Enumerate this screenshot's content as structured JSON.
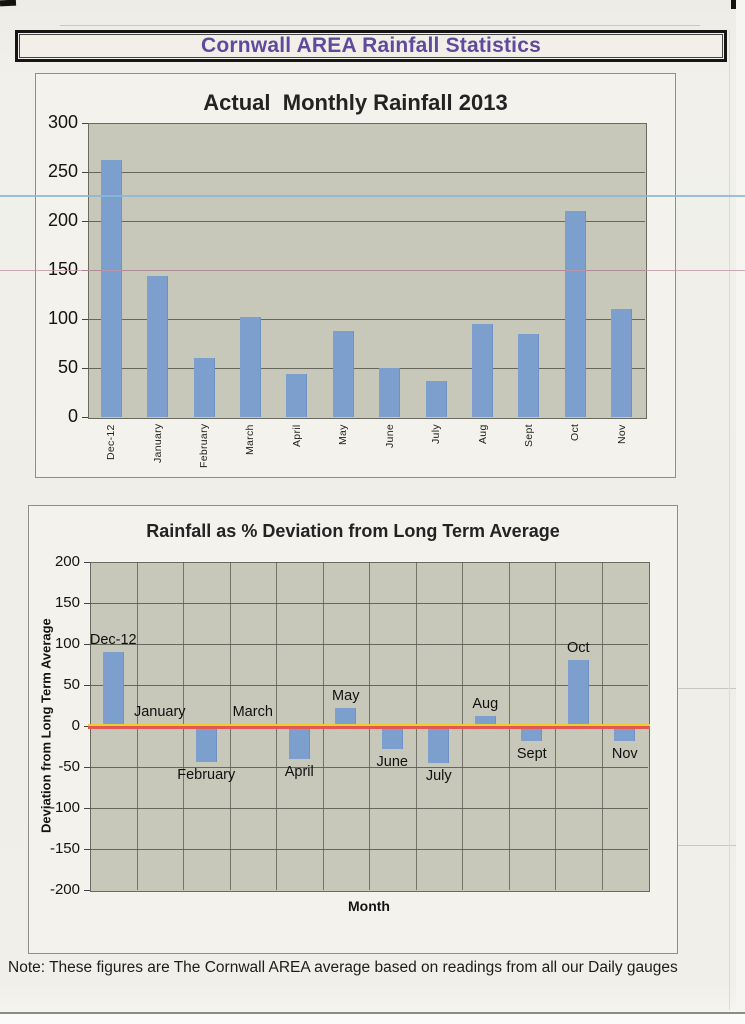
{
  "page_title": "Cornwall AREA Rainfall Statistics",
  "note": "Note: These figures are The Cornwall AREA average based on readings from all our Daily gauges",
  "colors": {
    "title_purple": "#5e4b9e",
    "bar_blue": "#7d9fce",
    "plot_background": "#c7c8b9",
    "zero_line_yellow": "#e8cf2e",
    "zero_line_red": "#e45752",
    "ruled_blue": "#8cb6d8",
    "ruled_pink": "#c295a8"
  },
  "chart_data": [
    {
      "type": "bar",
      "title": "Actual  Monthly Rainfall 2013",
      "categories": [
        "Dec-12",
        "January",
        "February",
        "March",
        "April",
        "May",
        "June",
        "July",
        "Aug",
        "Sept",
        "Oct",
        "Nov"
      ],
      "values": [
        262,
        144,
        60,
        102,
        44,
        88,
        50,
        37,
        95,
        85,
        210,
        110
      ],
      "xlabel": "",
      "ylabel": "",
      "ylim": [
        0,
        300
      ],
      "yticks": [
        300,
        250,
        200,
        150,
        100,
        50,
        0
      ],
      "grid": "horizontal",
      "legend": "none"
    },
    {
      "type": "bar",
      "title": "Rainfall as % Deviation from Long Term Average",
      "categories": [
        "Dec-12",
        "January",
        "February",
        "March",
        "April",
        "May",
        "June",
        "July",
        "Aug",
        "Sept",
        "Oct",
        "Nov"
      ],
      "values": [
        90,
        0,
        -44,
        0,
        -40,
        22,
        -28,
        -45,
        12,
        -18,
        80,
        -18
      ],
      "xlabel": "Month",
      "ylabel": "Deviation from Long Term Average",
      "ylim": [
        -200,
        200
      ],
      "yticks": [
        200,
        150,
        100,
        50,
        0,
        -50,
        -100,
        -150,
        -200
      ],
      "grid": "both",
      "zero_line": true,
      "annotations": "month labels placed above positive bars and below negative bars",
      "legend": "none"
    }
  ]
}
